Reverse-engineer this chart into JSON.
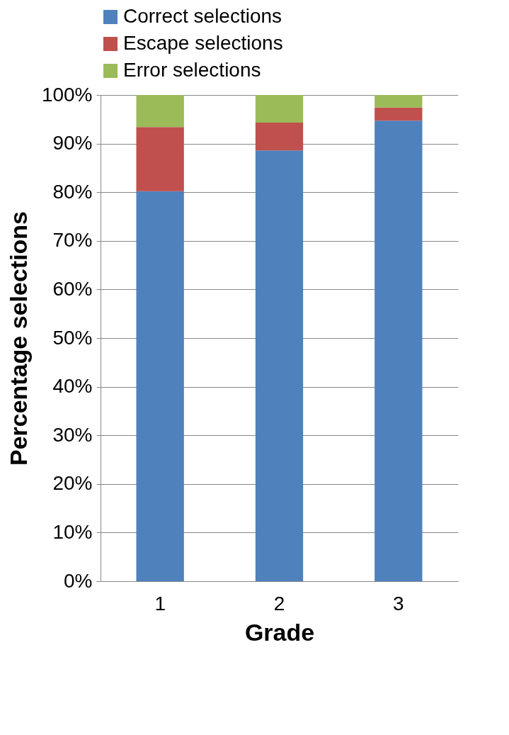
{
  "chart_data": {
    "type": "bar",
    "stacked": true,
    "xlabel": "Grade",
    "ylabel": "Percentage selections",
    "categories": [
      "1",
      "2",
      "3"
    ],
    "series": [
      {
        "name": "Correct selections",
        "color": "#4f81bd",
        "values": [
          80.2,
          88.6,
          94.7
        ]
      },
      {
        "name": "Escape selections",
        "color": "#c0504d",
        "values": [
          13.2,
          5.7,
          2.7
        ]
      },
      {
        "name": "Error selections",
        "color": "#9bbb59",
        "values": [
          6.6,
          5.7,
          2.6
        ]
      }
    ],
    "ylim": [
      0,
      100
    ],
    "yticks": [
      {
        "value": 0,
        "label": "0%"
      },
      {
        "value": 10,
        "label": "10%"
      },
      {
        "value": 20,
        "label": "20%"
      },
      {
        "value": 30,
        "label": "30%"
      },
      {
        "value": 40,
        "label": "40%"
      },
      {
        "value": 50,
        "label": "50%"
      },
      {
        "value": 60,
        "label": "60%"
      },
      {
        "value": 70,
        "label": "70%"
      },
      {
        "value": 80,
        "label": "80%"
      },
      {
        "value": 90,
        "label": "90%"
      },
      {
        "value": 100,
        "label": "100%"
      }
    ],
    "grid": "y",
    "legend": "top"
  }
}
